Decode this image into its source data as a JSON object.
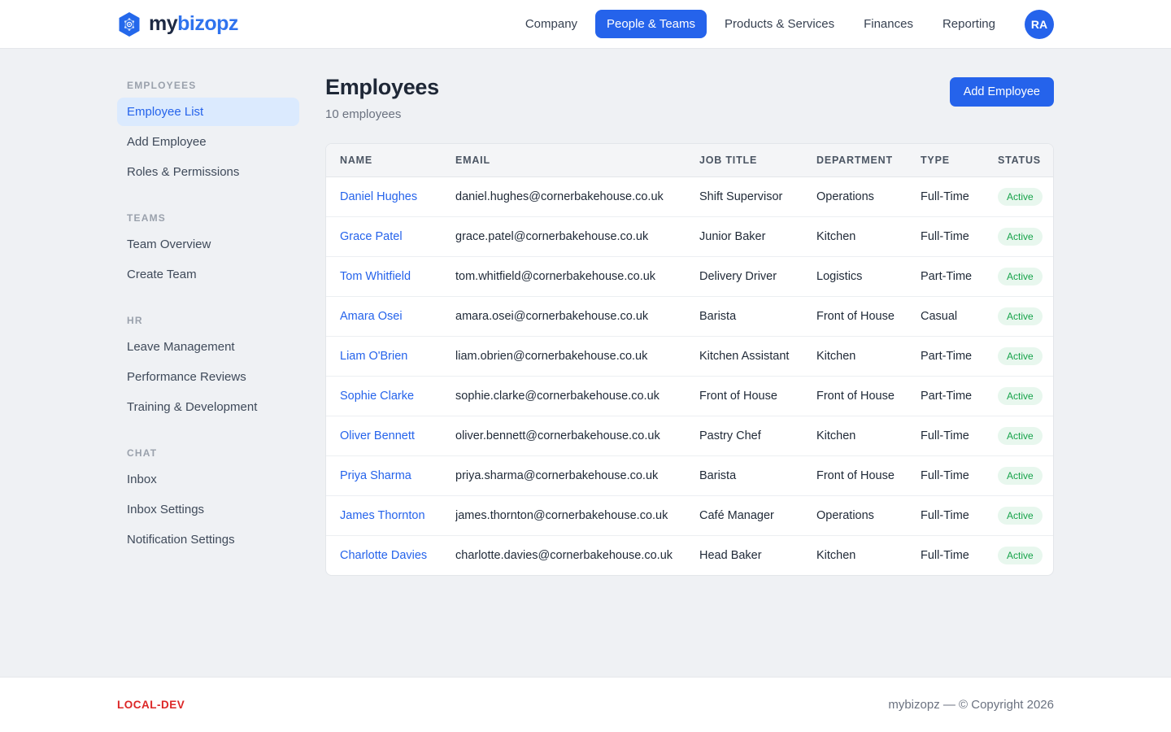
{
  "brand": {
    "name_part1": "my",
    "name_part2": "bizopz",
    "logo_icon": "hexagon-network-icon"
  },
  "nav": {
    "items": [
      {
        "label": "Company",
        "active": false
      },
      {
        "label": "People & Teams",
        "active": true
      },
      {
        "label": "Products & Services",
        "active": false
      },
      {
        "label": "Finances",
        "active": false
      },
      {
        "label": "Reporting",
        "active": false
      }
    ],
    "avatar_initials": "RA"
  },
  "sidebar": {
    "sections": [
      {
        "title": "EMPLOYEES",
        "items": [
          {
            "label": "Employee List",
            "active": true
          },
          {
            "label": "Add Employee",
            "active": false
          },
          {
            "label": "Roles & Permissions",
            "active": false
          }
        ]
      },
      {
        "title": "TEAMS",
        "items": [
          {
            "label": "Team Overview",
            "active": false
          },
          {
            "label": "Create Team",
            "active": false
          }
        ]
      },
      {
        "title": "HR",
        "items": [
          {
            "label": "Leave Management",
            "active": false
          },
          {
            "label": "Performance Reviews",
            "active": false
          },
          {
            "label": "Training & Development",
            "active": false
          }
        ]
      },
      {
        "title": "CHAT",
        "items": [
          {
            "label": "Inbox",
            "active": false
          },
          {
            "label": "Inbox Settings",
            "active": false
          },
          {
            "label": "Notification Settings",
            "active": false
          }
        ]
      }
    ]
  },
  "main": {
    "title": "Employees",
    "subtitle": "10 employees",
    "add_button_label": "Add Employee",
    "table": {
      "columns": [
        "NAME",
        "EMAIL",
        "JOB TITLE",
        "DEPARTMENT",
        "TYPE",
        "STATUS"
      ],
      "rows": [
        {
          "name": "Daniel Hughes",
          "email": "daniel.hughes@cornerbakehouse.co.uk",
          "job_title": "Shift Supervisor",
          "department": "Operations",
          "type": "Full-Time",
          "status": "Active"
        },
        {
          "name": "Grace Patel",
          "email": "grace.patel@cornerbakehouse.co.uk",
          "job_title": "Junior Baker",
          "department": "Kitchen",
          "type": "Full-Time",
          "status": "Active"
        },
        {
          "name": "Tom Whitfield",
          "email": "tom.whitfield@cornerbakehouse.co.uk",
          "job_title": "Delivery Driver",
          "department": "Logistics",
          "type": "Part-Time",
          "status": "Active"
        },
        {
          "name": "Amara Osei",
          "email": "amara.osei@cornerbakehouse.co.uk",
          "job_title": "Barista",
          "department": "Front of House",
          "type": "Casual",
          "status": "Active"
        },
        {
          "name": "Liam O'Brien",
          "email": "liam.obrien@cornerbakehouse.co.uk",
          "job_title": "Kitchen Assistant",
          "department": "Kitchen",
          "type": "Part-Time",
          "status": "Active"
        },
        {
          "name": "Sophie Clarke",
          "email": "sophie.clarke@cornerbakehouse.co.uk",
          "job_title": "Front of House",
          "department": "Front of House",
          "type": "Part-Time",
          "status": "Active"
        },
        {
          "name": "Oliver Bennett",
          "email": "oliver.bennett@cornerbakehouse.co.uk",
          "job_title": "Pastry Chef",
          "department": "Kitchen",
          "type": "Full-Time",
          "status": "Active"
        },
        {
          "name": "Priya Sharma",
          "email": "priya.sharma@cornerbakehouse.co.uk",
          "job_title": "Barista",
          "department": "Front of House",
          "type": "Full-Time",
          "status": "Active"
        },
        {
          "name": "James Thornton",
          "email": "james.thornton@cornerbakehouse.co.uk",
          "job_title": "Café Manager",
          "department": "Operations",
          "type": "Full-Time",
          "status": "Active"
        },
        {
          "name": "Charlotte Davies",
          "email": "charlotte.davies@cornerbakehouse.co.uk",
          "job_title": "Head Baker",
          "department": "Kitchen",
          "type": "Full-Time",
          "status": "Active"
        }
      ]
    }
  },
  "footer": {
    "env_label": "LOCAL-DEV",
    "copyright": "mybizopz — © Copyright 2026"
  },
  "colors": {
    "accent_blue": "#2563eb",
    "active_item_bg": "#dbeafe",
    "status_active_bg": "#e8f7ee",
    "status_active_text": "#16a34a",
    "env_red": "#dc2626"
  }
}
